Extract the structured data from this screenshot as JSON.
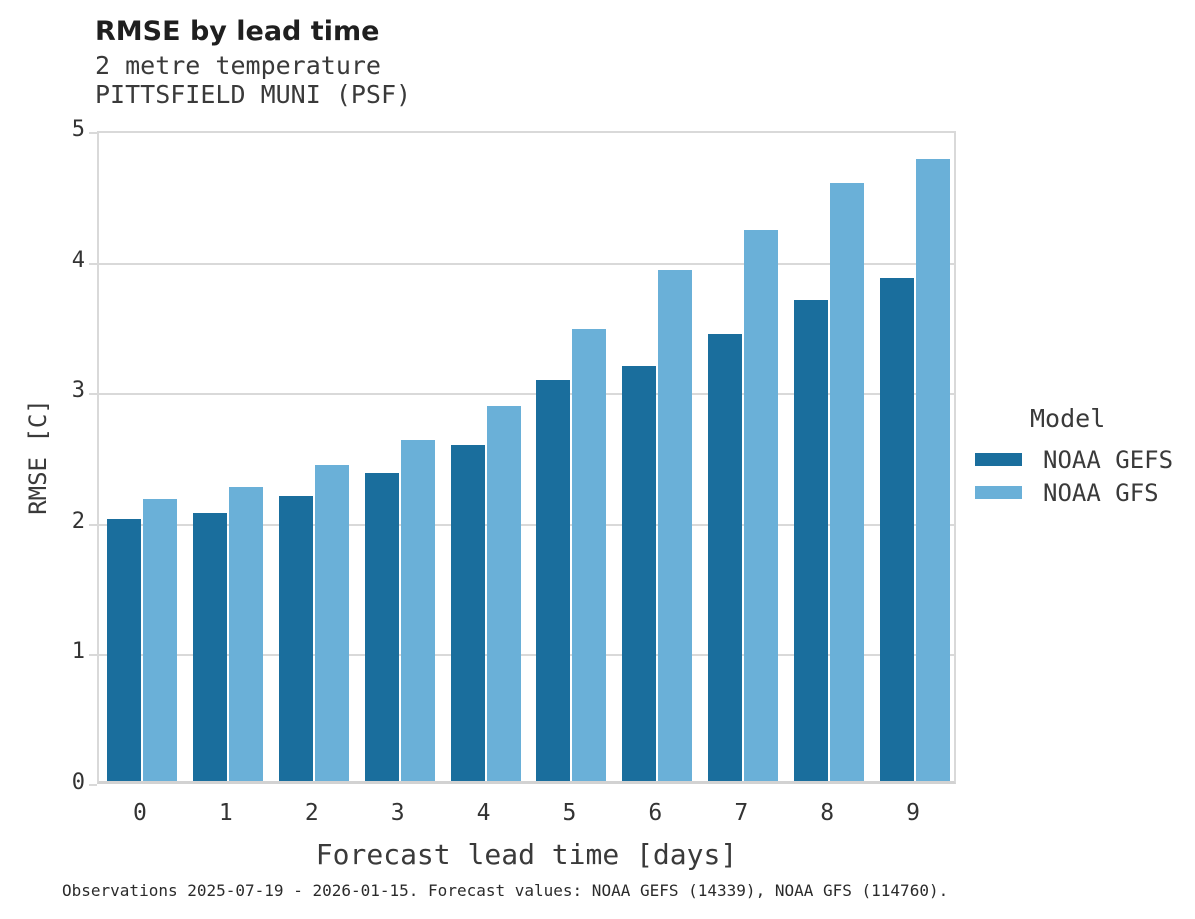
{
  "title": "RMSE by lead time",
  "subtitle": [
    "2 metre temperature",
    "PITTSFIELD MUNI (PSF)"
  ],
  "caption": "Observations 2025-07-19 - 2026-01-15. Forecast values: NOAA GEFS (14339), NOAA GFS (114760).",
  "legend": {
    "title": "Model"
  },
  "colors": {
    "gefs_dark_blue": "#1a6e9d",
    "gfs_light_blue": "#6ab0d8",
    "gridline_gray": "#d9d9d9"
  },
  "chart_data": {
    "type": "bar",
    "title": "RMSE by lead time",
    "subtitle": [
      "2 metre temperature",
      "PITTSFIELD MUNI (PSF)"
    ],
    "categories": [
      "0",
      "1",
      "2",
      "3",
      "4",
      "5",
      "6",
      "7",
      "8",
      "9"
    ],
    "series": [
      {
        "name": "NOAA GEFS",
        "color": "#1a6e9d",
        "values": [
          2.01,
          2.05,
          2.18,
          2.36,
          2.57,
          3.07,
          3.18,
          3.42,
          3.68,
          3.85
        ]
      },
      {
        "name": "NOAA GFS",
        "color": "#6ab0d8",
        "values": [
          2.16,
          2.25,
          2.42,
          2.61,
          2.87,
          3.46,
          3.91,
          4.22,
          4.58,
          4.76
        ]
      }
    ],
    "xlabel": "Forecast lead time [days]",
    "ylabel": "RMSE [C]",
    "ylim": [
      0,
      5
    ],
    "yticks": [
      0,
      1,
      2,
      3,
      4,
      5
    ],
    "grid": true,
    "legend_title": "Model",
    "legend_position": "right"
  }
}
